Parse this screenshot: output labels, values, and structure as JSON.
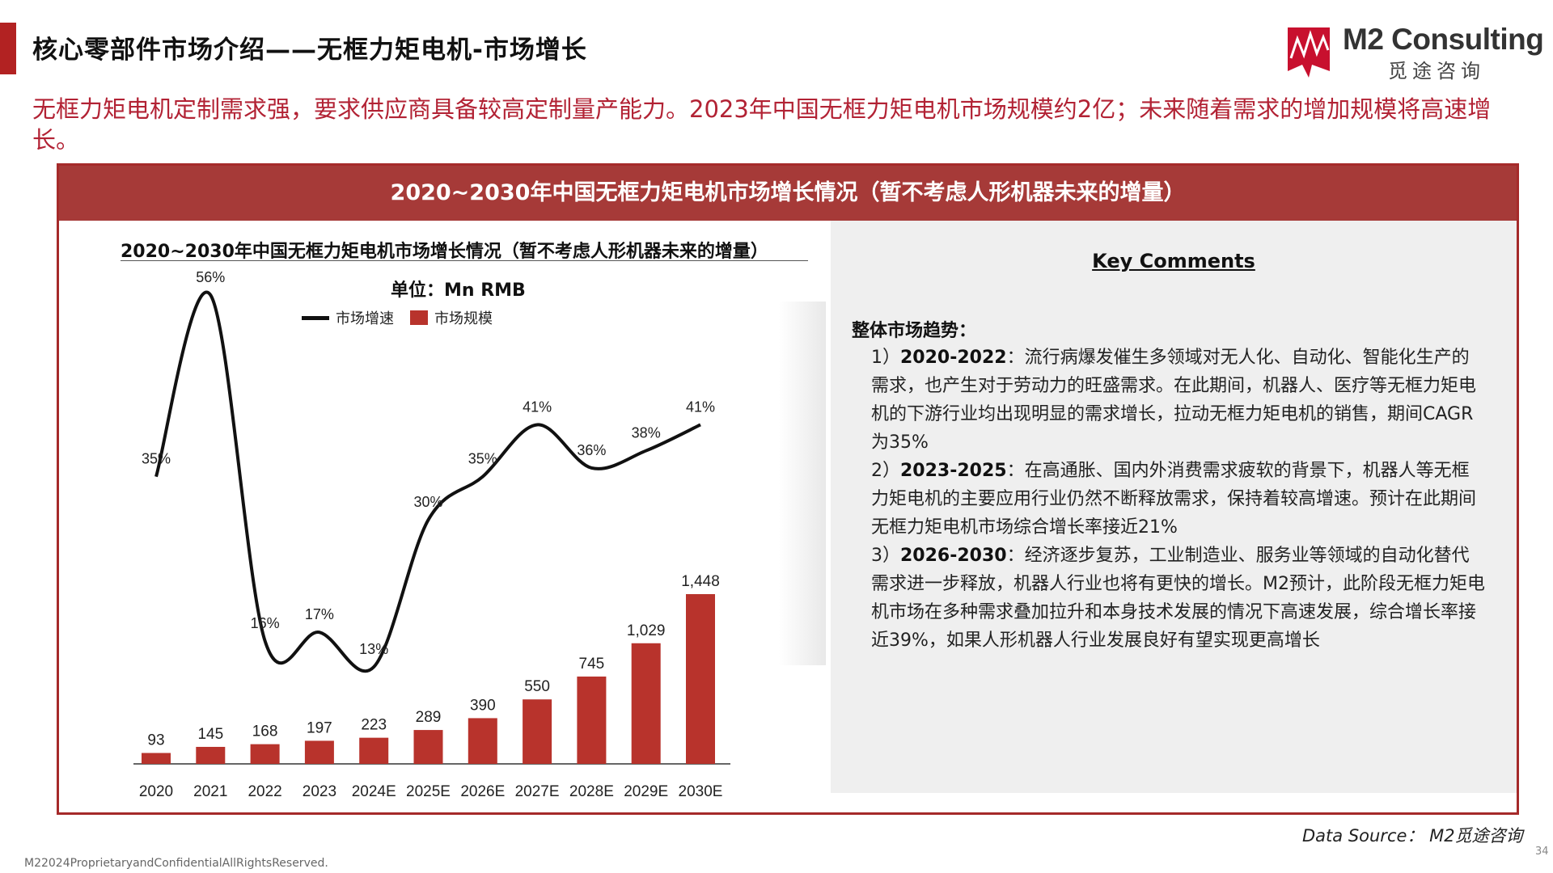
{
  "header": {
    "title": "核心零部件市场介绍——无框力矩电机-市场增长",
    "logo_name": "M2 Consulting",
    "logo_cn": "觅途咨询"
  },
  "subtitle": "无框力矩电机定制需求强，要求供应商具备较高定制量产能力。2023年中国无框力矩电机市场规模约2亿；未来随着需求的增加规模将高速增长。",
  "panel": {
    "header": "2020~2030年中国无框力矩电机市场增长情况（暂不考虑人形机器未来的增量）"
  },
  "colors": {
    "accent": "#b22222",
    "bar": "#b8332c",
    "line": "#111111",
    "header_bg": "#a63a38"
  },
  "chart_data": {
    "type": "bar",
    "title": "2020~2030年中国无框力矩电机市场增长情况（暂不考虑人形机器未来的增量）",
    "unit": "单位：Mn RMB",
    "categories": [
      "2020",
      "2021",
      "2022",
      "2023",
      "2024E",
      "2025E",
      "2026E",
      "2027E",
      "2028E",
      "2029E",
      "2030E"
    ],
    "series": [
      {
        "name": "市场规模",
        "type": "bar",
        "values": [
          93,
          145,
          168,
          197,
          223,
          289,
          390,
          550,
          745,
          1029,
          1448
        ],
        "labels": [
          "93",
          "145",
          "168",
          "197",
          "223",
          "289",
          "390",
          "550",
          "745",
          "1,029",
          "1,448"
        ]
      },
      {
        "name": "市场增速",
        "type": "line",
        "values": [
          35,
          56,
          16,
          17,
          13,
          30,
          35,
          41,
          36,
          38,
          41
        ],
        "labels": [
          "35%",
          "56%",
          "16%",
          "17%",
          "13%",
          "30%",
          "35%",
          "41%",
          "36%",
          "38%",
          "41%"
        ]
      }
    ],
    "legend": [
      "市场增速",
      "市场规模"
    ],
    "legend_position": "top",
    "grid": false
  },
  "comments": {
    "title": "Key Comments",
    "heading": "整体市场趋势：",
    "items": [
      {
        "num": "1）",
        "period": "2020-2022",
        "text": "：流行病爆发催生多领域对无人化、自动化、智能化生产的需求，也产生对于劳动力的旺盛需求。在此期间，机器人、医疗等无框力矩电机的下游行业均出现明显的需求增长，拉动无框力矩电机的销售，期间CAGR为35%"
      },
      {
        "num": "2）",
        "period": "2023-2025",
        "text": "：在高通胀、国内外消费需求疲软的背景下，机器人等无框力矩电机的主要应用行业仍然不断释放需求，保持着较高增速。预计在此期间无框力矩电机市场综合增长率接近21%"
      },
      {
        "num": "3）",
        "period": "2026-2030",
        "text": "：经济逐步复苏，工业制造业、服务业等领域的自动化替代需求进一步释放，机器人行业也将有更快的增长。M2预计，此阶段无框力矩电机市场在多种需求叠加拉升和本身技术发展的情况下高速发展，综合增长率接近39%，如果人形机器人行业发展良好有望实现更高增长"
      }
    ]
  },
  "footer": {
    "data_source": "Data Source： M2觅途咨询",
    "copyright": "M22024ProprietaryandConfidentialAllRightsReserved.",
    "page_number": "34"
  }
}
